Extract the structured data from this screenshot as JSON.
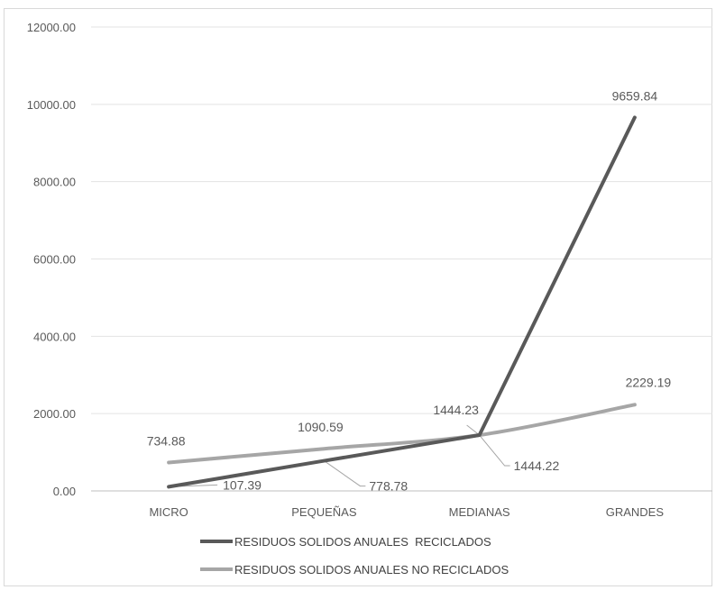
{
  "chart_data": {
    "type": "line",
    "categories": [
      "MICRO",
      "PEQUEÑAS",
      "MEDIANAS",
      "GRANDES"
    ],
    "series": [
      {
        "name": "RESIDUOS SOLIDOS ANUALES  RECICLADOS",
        "values": [
          107.39,
          778.78,
          1444.22,
          9659.84
        ],
        "labels": [
          "107.39",
          "778.78",
          "1444.22",
          "9659.84"
        ],
        "color": "#595959"
      },
      {
        "name": "RESIDUOS SOLIDOS ANUALES NO RECICLADOS",
        "values": [
          734.88,
          1090.59,
          1444.23,
          2229.19
        ],
        "labels": [
          "734.88",
          "1090.59",
          "1444.23",
          "2229.19"
        ],
        "color": "#a6a6a6"
      }
    ],
    "yticks": [
      "0.00",
      "2000.00",
      "4000.00",
      "6000.00",
      "8000.00",
      "10000.00",
      "12000.00"
    ],
    "ylim": [
      0,
      12000
    ],
    "grid": true,
    "legend_position": "bottom",
    "title": "",
    "xlabel": "",
    "ylabel": ""
  }
}
